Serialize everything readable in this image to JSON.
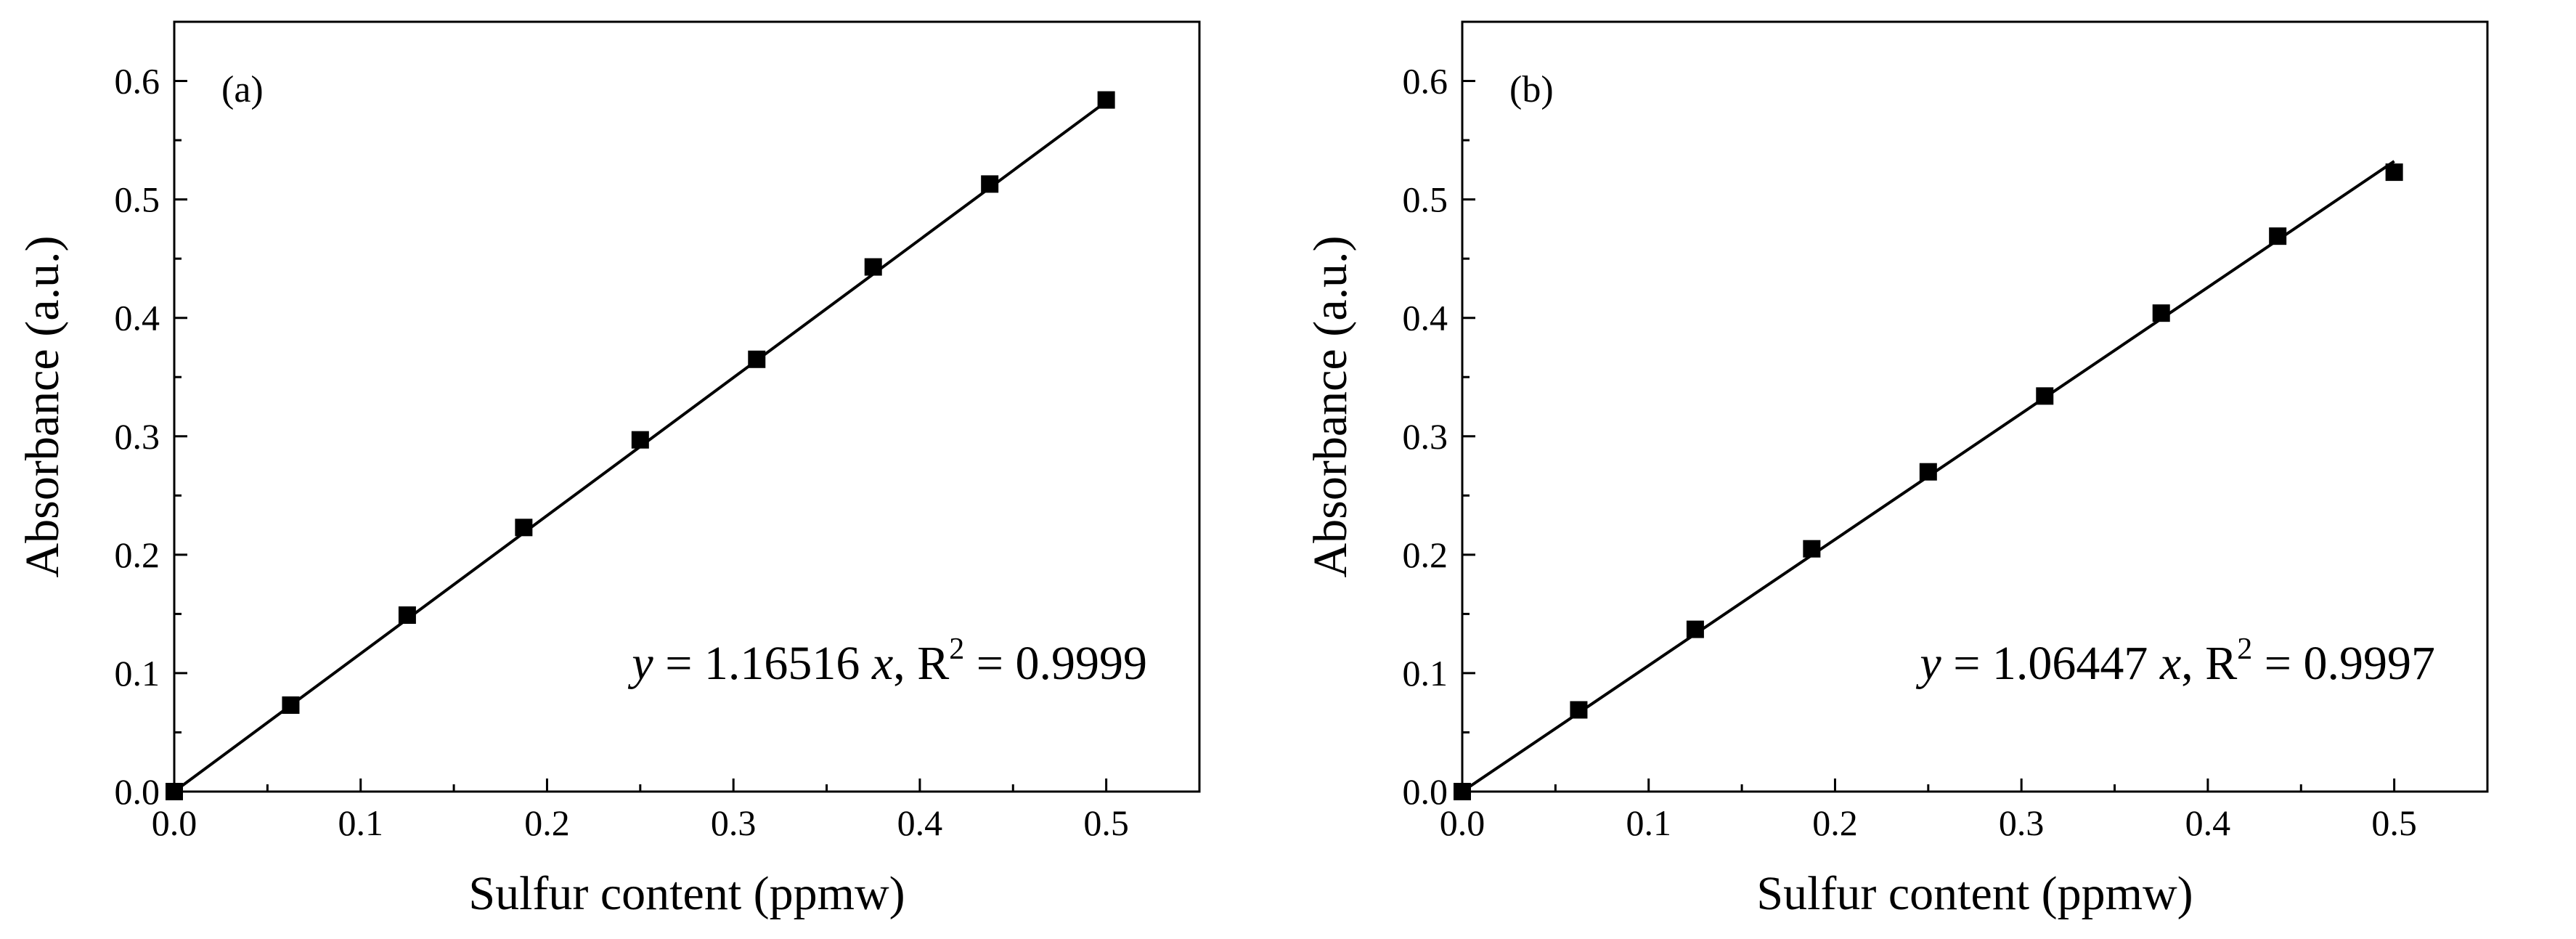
{
  "chart_data": [
    {
      "type": "scatter",
      "panel_label": "(a)",
      "xlabel": "Sulfur content (ppmw)",
      "ylabel": "Absorbance (a.u.)",
      "xlim": [
        0.0,
        0.55
      ],
      "ylim": [
        0.0,
        0.65
      ],
      "xticks": [
        0.0,
        0.1,
        0.2,
        0.3,
        0.4,
        0.5
      ],
      "xtick_labels": [
        "0.0",
        "0.1",
        "0.2",
        "0.3",
        "0.4",
        "0.5"
      ],
      "yticks": [
        0.0,
        0.1,
        0.2,
        0.3,
        0.4,
        0.5,
        0.6
      ],
      "ytick_labels": [
        "0.0",
        "0.1",
        "0.2",
        "0.3",
        "0.4",
        "0.5",
        "0.6"
      ],
      "series": [
        {
          "name": "data",
          "x": [
            0.0,
            0.0625,
            0.125,
            0.1875,
            0.25,
            0.3125,
            0.375,
            0.4375,
            0.5
          ],
          "y": [
            0.0,
            0.073,
            0.149,
            0.223,
            0.297,
            0.365,
            0.443,
            0.513,
            0.584
          ]
        }
      ],
      "fit": {
        "slope": 1.16516,
        "x_range": [
          0.0,
          0.5
        ]
      },
      "equation": {
        "y": "y",
        "eq1": " = 1.16516 ",
        "x": "x",
        "eq2": ", R",
        "sup": "2",
        "eq3": " = 0.9999"
      }
    },
    {
      "type": "scatter",
      "panel_label": "(b)",
      "xlabel": "Sulfur content (ppmw)",
      "ylabel": "Absorbance (a.u.)",
      "xlim": [
        0.0,
        0.55
      ],
      "ylim": [
        0.0,
        0.65
      ],
      "xticks": [
        0.0,
        0.1,
        0.2,
        0.3,
        0.4,
        0.5
      ],
      "xtick_labels": [
        "0.0",
        "0.1",
        "0.2",
        "0.3",
        "0.4",
        "0.5"
      ],
      "yticks": [
        0.0,
        0.1,
        0.2,
        0.3,
        0.4,
        0.5,
        0.6
      ],
      "ytick_labels": [
        "0.0",
        "0.1",
        "0.2",
        "0.3",
        "0.4",
        "0.5",
        "0.6"
      ],
      "series": [
        {
          "name": "data",
          "x": [
            0.0,
            0.0625,
            0.125,
            0.1875,
            0.25,
            0.3125,
            0.375,
            0.4375,
            0.5
          ],
          "y": [
            0.0,
            0.069,
            0.137,
            0.205,
            0.27,
            0.334,
            0.404,
            0.469,
            0.523
          ]
        }
      ],
      "fit": {
        "slope": 1.06447,
        "x_range": [
          0.0,
          0.5
        ]
      },
      "equation": {
        "y": "y",
        "eq1": " = 1.06447 ",
        "x": "x",
        "eq2": ", R",
        "sup": "2",
        "eq3": " = 0.9997"
      }
    }
  ]
}
